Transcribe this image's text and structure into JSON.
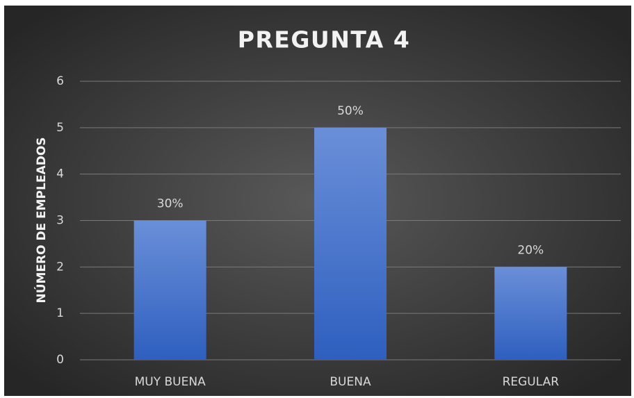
{
  "chart_data": {
    "type": "bar",
    "title": "PREGUNTA 4",
    "y_label": "NÚMERO DE EMPLEADOS",
    "categories": [
      "MUY BUENA",
      "BUENA",
      "REGULAR"
    ],
    "values": [
      3,
      5,
      2
    ],
    "value_labels": [
      "30%",
      "50%",
      "20%"
    ],
    "color": "#4472c4",
    "ylim": [
      0,
      6
    ],
    "yticks": [
      0,
      1,
      2,
      3,
      4,
      5,
      6
    ],
    "grid": true
  }
}
